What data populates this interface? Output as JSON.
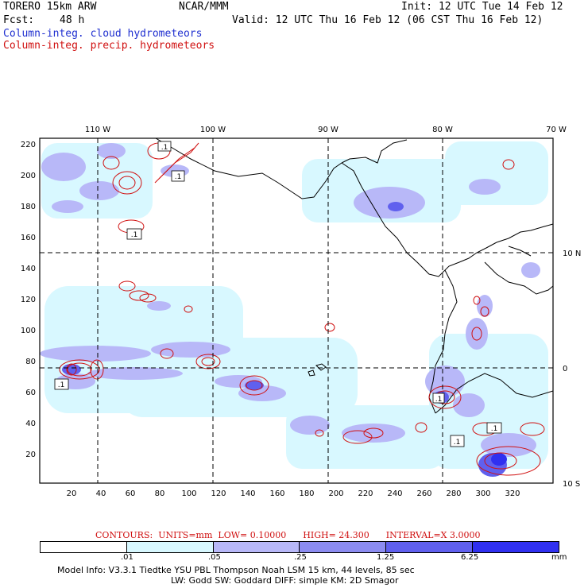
{
  "header": {
    "model": "TORERO  15km ARW",
    "org": "NCAR/MMM",
    "init": "Init: 12 UTC Tue 14 Feb 12",
    "fcst_label": "Fcst:",
    "fcst_value": "48 h",
    "valid": "Valid: 12 UTC Thu 16 Feb 12 (06 CST Thu 16 Feb 12)",
    "line_cloud": "Column-integ. cloud hydrometeors",
    "line_precip": "Column-integ. precip. hydrometeors"
  },
  "colors": {
    "cloud_blue": "#1f2fd0",
    "precip_red": "#d01010",
    "shade_1": "#d8f8ff",
    "shade_2": "#b8b8f8",
    "shade_3": "#8c8cf0",
    "shade_4": "#6060ee",
    "shade_5": "#3030f0"
  },
  "map": {
    "top_lon_labels": [
      "110 W",
      "100 W",
      "90 W",
      "80 W",
      "70 W"
    ],
    "right_lat_labels": [
      "10 N",
      "0",
      "10 S"
    ],
    "left_ticks": [
      "220",
      "200",
      "180",
      "160",
      "140",
      "120",
      "100",
      "80",
      "60",
      "40",
      "20"
    ],
    "bottom_ticks": [
      "20",
      "40",
      "60",
      "80",
      "100",
      "120",
      "140",
      "160",
      "180",
      "200",
      "220",
      "240",
      "260",
      "280",
      "300",
      "320"
    ],
    "contour_labels": [
      ".1",
      ".1",
      ".1",
      ".1",
      ".1",
      ".1",
      ".1"
    ]
  },
  "contours": {
    "label": "CONTOURS:",
    "units": "UNITS=mm",
    "low": "LOW= 0.10000",
    "high": "HIGH=  24.300",
    "interval": "INTERVAL=X  3.0000"
  },
  "colorbar": {
    "labels": [
      ".01",
      ".05",
      ".25",
      "1.25",
      "6.25"
    ],
    "unit": "mm"
  },
  "footer": {
    "line1": "Model Info: V3.3.1   Tiedtke YSU PBL  Thompson    Noah LSM  15 km,   44 levels,   85 sec",
    "line2": "LW: Godd SW: Goddard DIFF: simple KM: 2D Smagor"
  }
}
